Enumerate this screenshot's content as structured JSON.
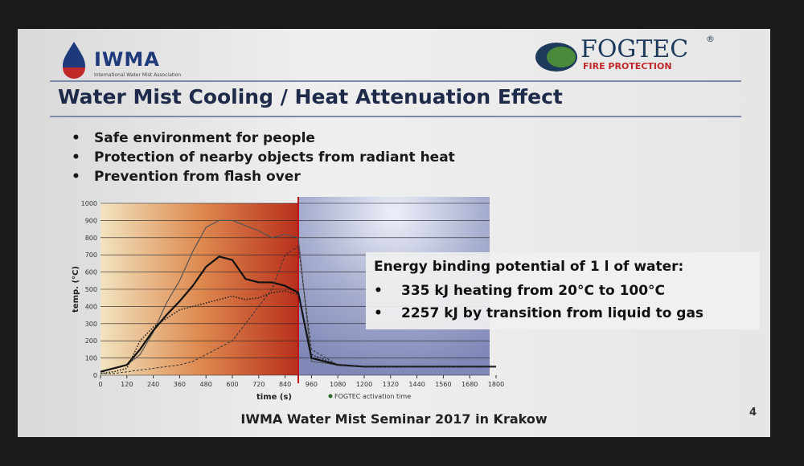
{
  "slide": {
    "logo_left": {
      "name": "IWMA",
      "subtitle": "International Water Mist Association"
    },
    "logo_right": {
      "name": "FOGTEC",
      "mark": "®",
      "subtitle": "FIRE PROTECTION"
    },
    "title": "Water Mist Cooling / Heat Attenuation Effect",
    "bullets": [
      "Safe environment for people",
      "Protection of nearby objects from radiant heat",
      "Prevention from flash over"
    ],
    "energy_box": {
      "heading": "Energy binding potential of 1 l of water:",
      "items": [
        "335 kJ heating from 20°C to 100°C",
        "2257 kJ by transition from liquid to gas"
      ]
    },
    "footer": "IWMA Water Mist Seminar 2017 in Krakow",
    "page_number": "4"
  },
  "chart_data": {
    "type": "line",
    "x_label": "time (s)",
    "y_label": "temp. (°C)",
    "annotation": "FOGTEC activation time",
    "activation_time": 900,
    "xlim": [
      0,
      1800
    ],
    "xticks": [
      0,
      120,
      240,
      360,
      480,
      600,
      720,
      840,
      960,
      1080,
      1200,
      1320,
      1440,
      1560,
      1680,
      1800
    ],
    "ylim": [
      0,
      1000
    ],
    "yticks": [
      0,
      100,
      200,
      300,
      400,
      500,
      600,
      700,
      800,
      900,
      1000
    ],
    "grid": true,
    "x": [
      0,
      60,
      120,
      180,
      240,
      300,
      360,
      420,
      480,
      540,
      600,
      660,
      720,
      780,
      840,
      900,
      960,
      1080,
      1200,
      1320,
      1440,
      1560,
      1680,
      1800
    ],
    "series": [
      {
        "color": "#555555",
        "style": "solid",
        "width": 1.2,
        "values": [
          20,
          40,
          60,
          120,
          250,
          420,
          550,
          720,
          860,
          900,
          900,
          870,
          840,
          800,
          820,
          800,
          80,
          60,
          50,
          50,
          50,
          50,
          50,
          50
        ]
      },
      {
        "color": "#111111",
        "style": "solid",
        "width": 2.2,
        "values": [
          20,
          40,
          60,
          150,
          260,
          350,
          430,
          520,
          630,
          690,
          670,
          560,
          540,
          540,
          520,
          480,
          100,
          60,
          50,
          50,
          50,
          50,
          50,
          50
        ]
      },
      {
        "color": "#222222",
        "style": "dotted",
        "width": 1.6,
        "values": [
          10,
          20,
          40,
          200,
          280,
          330,
          380,
          400,
          420,
          440,
          460,
          440,
          450,
          480,
          490,
          470,
          120,
          60,
          50,
          50,
          50,
          50,
          50,
          50
        ]
      },
      {
        "color": "#333333",
        "style": "dashed",
        "width": 1,
        "values": [
          10,
          10,
          20,
          30,
          40,
          50,
          60,
          80,
          120,
          160,
          200,
          300,
          400,
          500,
          700,
          750,
          150,
          60,
          50,
          50,
          50,
          50,
          50,
          50
        ]
      }
    ]
  }
}
